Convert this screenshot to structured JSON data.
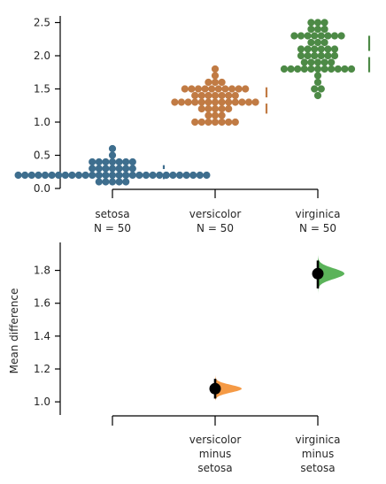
{
  "chart_data": [
    {
      "type": "scatter",
      "subtype": "swarm",
      "ylim": [
        0,
        2.6
      ],
      "yticks": [
        0.0,
        0.5,
        1.0,
        1.5,
        2.0,
        2.5
      ],
      "ytick_labels": [
        "0.0",
        "0.5",
        "1.0",
        "1.5",
        "2.0",
        "2.5"
      ],
      "groups": [
        {
          "label": "setosa",
          "n_label": "N = 50",
          "color": "#3e6e8e",
          "mean": 0.246,
          "sd": 0.105,
          "values": [
            0.2,
            0.2,
            0.2,
            0.2,
            0.2,
            0.4,
            0.3,
            0.2,
            0.2,
            0.1,
            0.2,
            0.2,
            0.1,
            0.1,
            0.2,
            0.4,
            0.4,
            0.3,
            0.3,
            0.3,
            0.2,
            0.4,
            0.2,
            0.5,
            0.2,
            0.2,
            0.4,
            0.2,
            0.2,
            0.2,
            0.2,
            0.4,
            0.1,
            0.2,
            0.2,
            0.2,
            0.2,
            0.1,
            0.2,
            0.2,
            0.3,
            0.3,
            0.2,
            0.6,
            0.4,
            0.3,
            0.2,
            0.2,
            0.2,
            0.2
          ]
        },
        {
          "label": "versicolor",
          "n_label": "N = 50",
          "color": "#c17b44",
          "mean": 1.326,
          "sd": 0.198,
          "values": [
            1.4,
            1.5,
            1.5,
            1.3,
            1.5,
            1.3,
            1.6,
            1.0,
            1.3,
            1.4,
            1.0,
            1.5,
            1.0,
            1.4,
            1.3,
            1.4,
            1.5,
            1.0,
            1.5,
            1.1,
            1.8,
            1.3,
            1.5,
            1.2,
            1.3,
            1.4,
            1.4,
            1.7,
            1.5,
            1.0,
            1.1,
            1.0,
            1.2,
            1.6,
            1.5,
            1.6,
            1.5,
            1.3,
            1.3,
            1.3,
            1.2,
            1.4,
            1.2,
            1.0,
            1.3,
            1.2,
            1.3,
            1.3,
            1.1,
            1.3
          ]
        },
        {
          "label": "virginica",
          "n_label": "N = 50",
          "color": "#4d8a46",
          "mean": 2.026,
          "sd": 0.275,
          "values": [
            2.5,
            1.9,
            2.1,
            1.8,
            2.2,
            2.1,
            1.7,
            1.8,
            1.8,
            2.5,
            2.0,
            1.9,
            2.1,
            2.0,
            2.4,
            2.3,
            1.8,
            2.2,
            2.3,
            1.5,
            2.3,
            2.0,
            2.0,
            1.8,
            2.1,
            1.8,
            1.8,
            1.8,
            2.1,
            1.6,
            1.9,
            2.0,
            2.2,
            1.5,
            1.4,
            2.3,
            2.4,
            1.8,
            1.8,
            2.1,
            2.4,
            2.3,
            1.9,
            2.3,
            2.5,
            2.3,
            1.9,
            2.0,
            2.3,
            1.8
          ]
        }
      ]
    },
    {
      "type": "scatter",
      "subtype": "estimation",
      "ylabel": "Mean difference",
      "ylim": [
        0.92,
        1.97
      ],
      "yticks": [
        1.0,
        1.2,
        1.4,
        1.6,
        1.8
      ],
      "ytick_labels": [
        "1.0",
        "1.2",
        "1.4",
        "1.6",
        "1.8"
      ],
      "categories": [
        {
          "line1": "",
          "line2": "",
          "line3": ""
        },
        {
          "line1": "versicolor",
          "line2": "minus",
          "line3": "setosa"
        },
        {
          "line1": "virginica",
          "line2": "minus",
          "line3": "setosa"
        }
      ],
      "series": [
        {
          "category_index": 1,
          "mean_difference": 1.08,
          "ci": [
            1.02,
            1.14
          ],
          "dist_sd": 0.023,
          "dist_range": [
            1.01,
            1.16
          ],
          "color": "#f59a45"
        },
        {
          "category_index": 2,
          "mean_difference": 1.78,
          "ci": [
            1.69,
            1.86
          ],
          "dist_sd": 0.032,
          "dist_range": [
            1.66,
            1.89
          ],
          "color": "#5bb35a"
        }
      ]
    }
  ]
}
